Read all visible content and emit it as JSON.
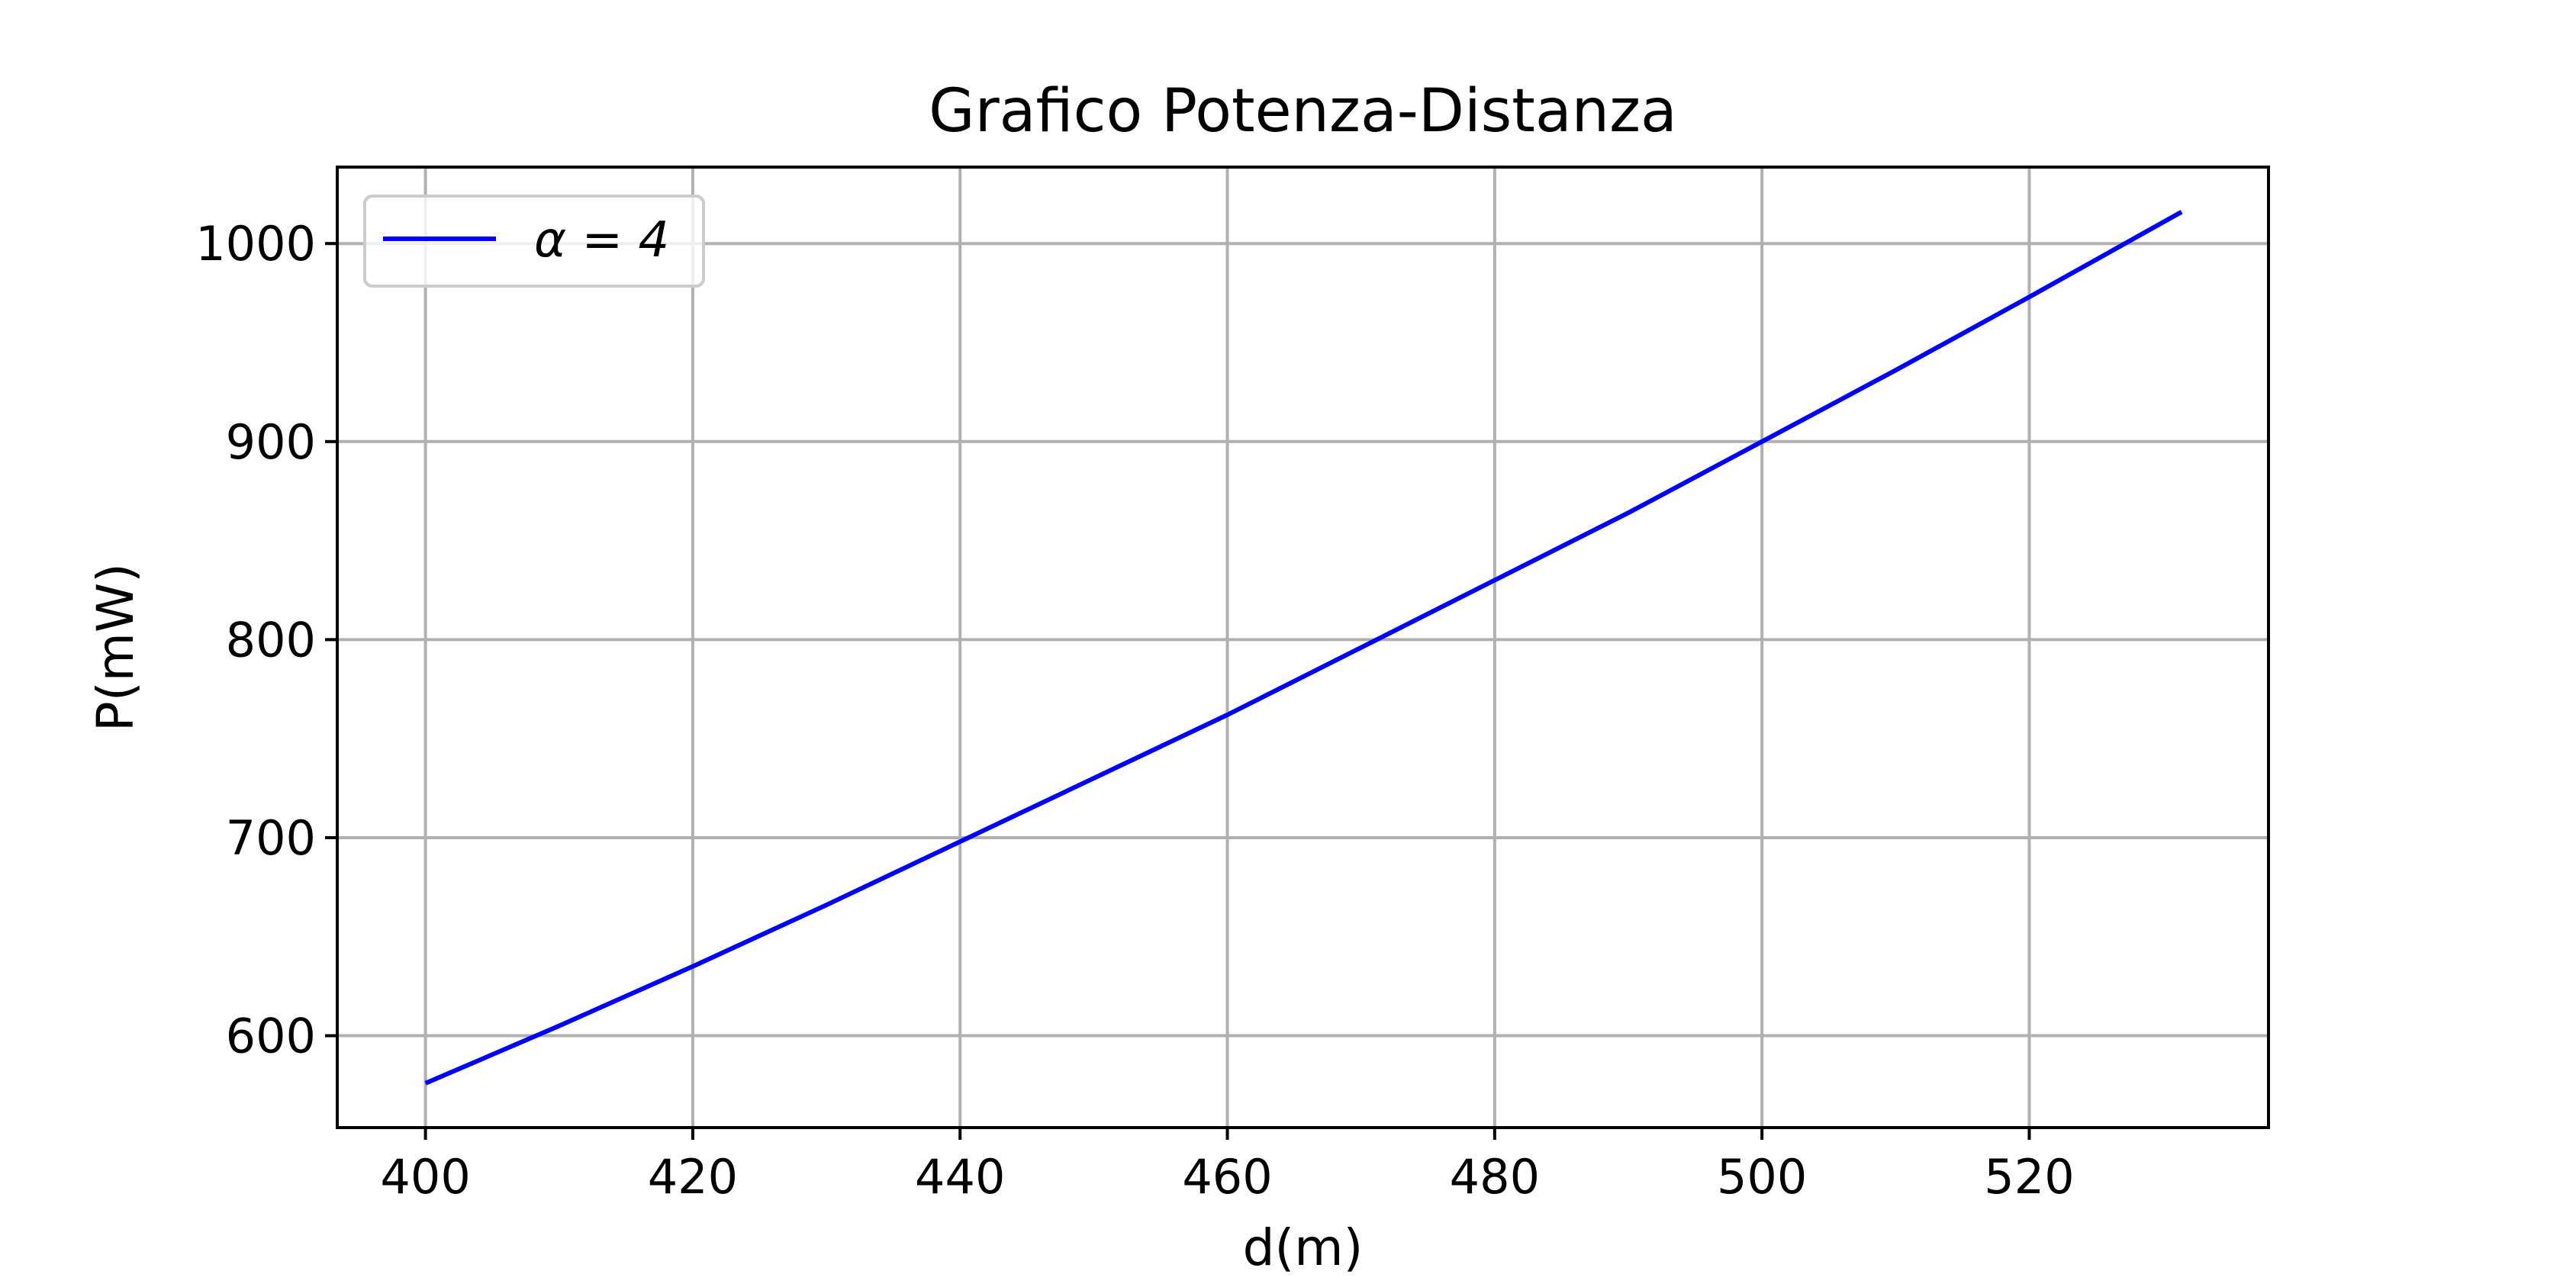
{
  "chart_data": {
    "type": "line",
    "title": "Grafico Potenza-Distanza",
    "xlabel": "d(m)",
    "ylabel": "P(mW)",
    "xlim": [
      393.4,
      537.9
    ],
    "ylim": [
      553.6,
      1038.6
    ],
    "xticks": [
      400,
      420,
      440,
      460,
      480,
      500,
      520
    ],
    "yticks": [
      600,
      700,
      800,
      900,
      1000
    ],
    "grid": true,
    "legend_position": "upper left",
    "series": [
      {
        "name": "α = 4",
        "color": "#0000ff",
        "x": [
          400,
          410,
          420,
          430,
          440,
          450,
          460,
          470,
          480,
          490,
          500,
          510,
          520,
          531.4
        ],
        "y": [
          576,
          605,
          635,
          666,
          698,
          730,
          762,
          796,
          830,
          864,
          900,
          936,
          973,
          1016
        ]
      }
    ]
  },
  "colors": {
    "grid": "#b0b0b0",
    "axes": "#000000",
    "legend_border": "#cccccc"
  }
}
